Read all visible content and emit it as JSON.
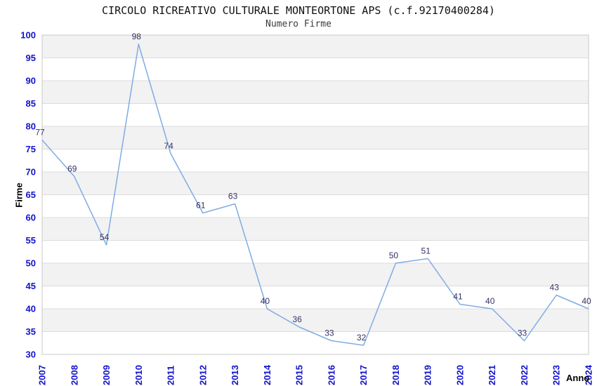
{
  "chart_data": {
    "type": "line",
    "title": "CIRCOLO RICREATIVO CULTURALE MONTEORTONE APS (c.f.92170400284)",
    "subtitle": "Numero Firme",
    "xlabel": "Anno",
    "ylabel": "Firme",
    "x": [
      "2007",
      "2008",
      "2009",
      "2010",
      "2011",
      "2012",
      "2013",
      "2014",
      "2015",
      "2016",
      "2017",
      "2018",
      "2019",
      "2020",
      "2021",
      "2022",
      "2023",
      "2024"
    ],
    "values": [
      77,
      69,
      54,
      98,
      74,
      61,
      63,
      40,
      36,
      33,
      32,
      50,
      51,
      41,
      40,
      33,
      43,
      40
    ],
    "ylim": [
      30,
      100
    ],
    "ytick_step": 5,
    "grid": true,
    "legend": "none",
    "colors": {
      "line": "#7FACE3",
      "value_label": "#333366",
      "tick_label": "#1212CC",
      "band_fill": "#F2F2F2",
      "gridline": "#DCDCDC",
      "plot_border": "#C9C9C9",
      "background": "#FFFFFF"
    }
  }
}
